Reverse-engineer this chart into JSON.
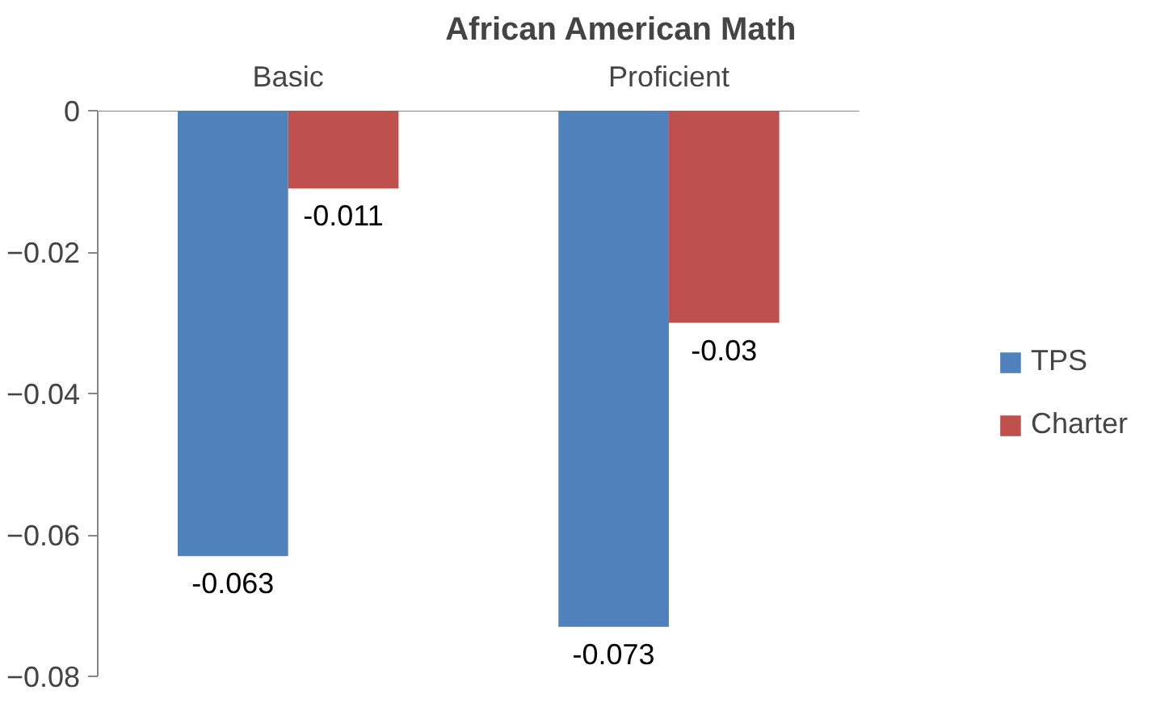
{
  "chart_data": {
    "type": "bar",
    "title": "African American Math",
    "categories": [
      "Basic",
      "Proficient"
    ],
    "series": [
      {
        "name": "TPS",
        "color": "#4f81bd",
        "values": [
          -0.063,
          -0.073
        ]
      },
      {
        "name": "Charter",
        "color": "#c0504d",
        "values": [
          -0.011,
          -0.03
        ]
      }
    ],
    "ylim": [
      -0.08,
      0
    ],
    "yticks": [
      0,
      -0.02,
      -0.04,
      -0.06,
      -0.08
    ],
    "data_labels": true,
    "legend": "right",
    "grid": false
  }
}
